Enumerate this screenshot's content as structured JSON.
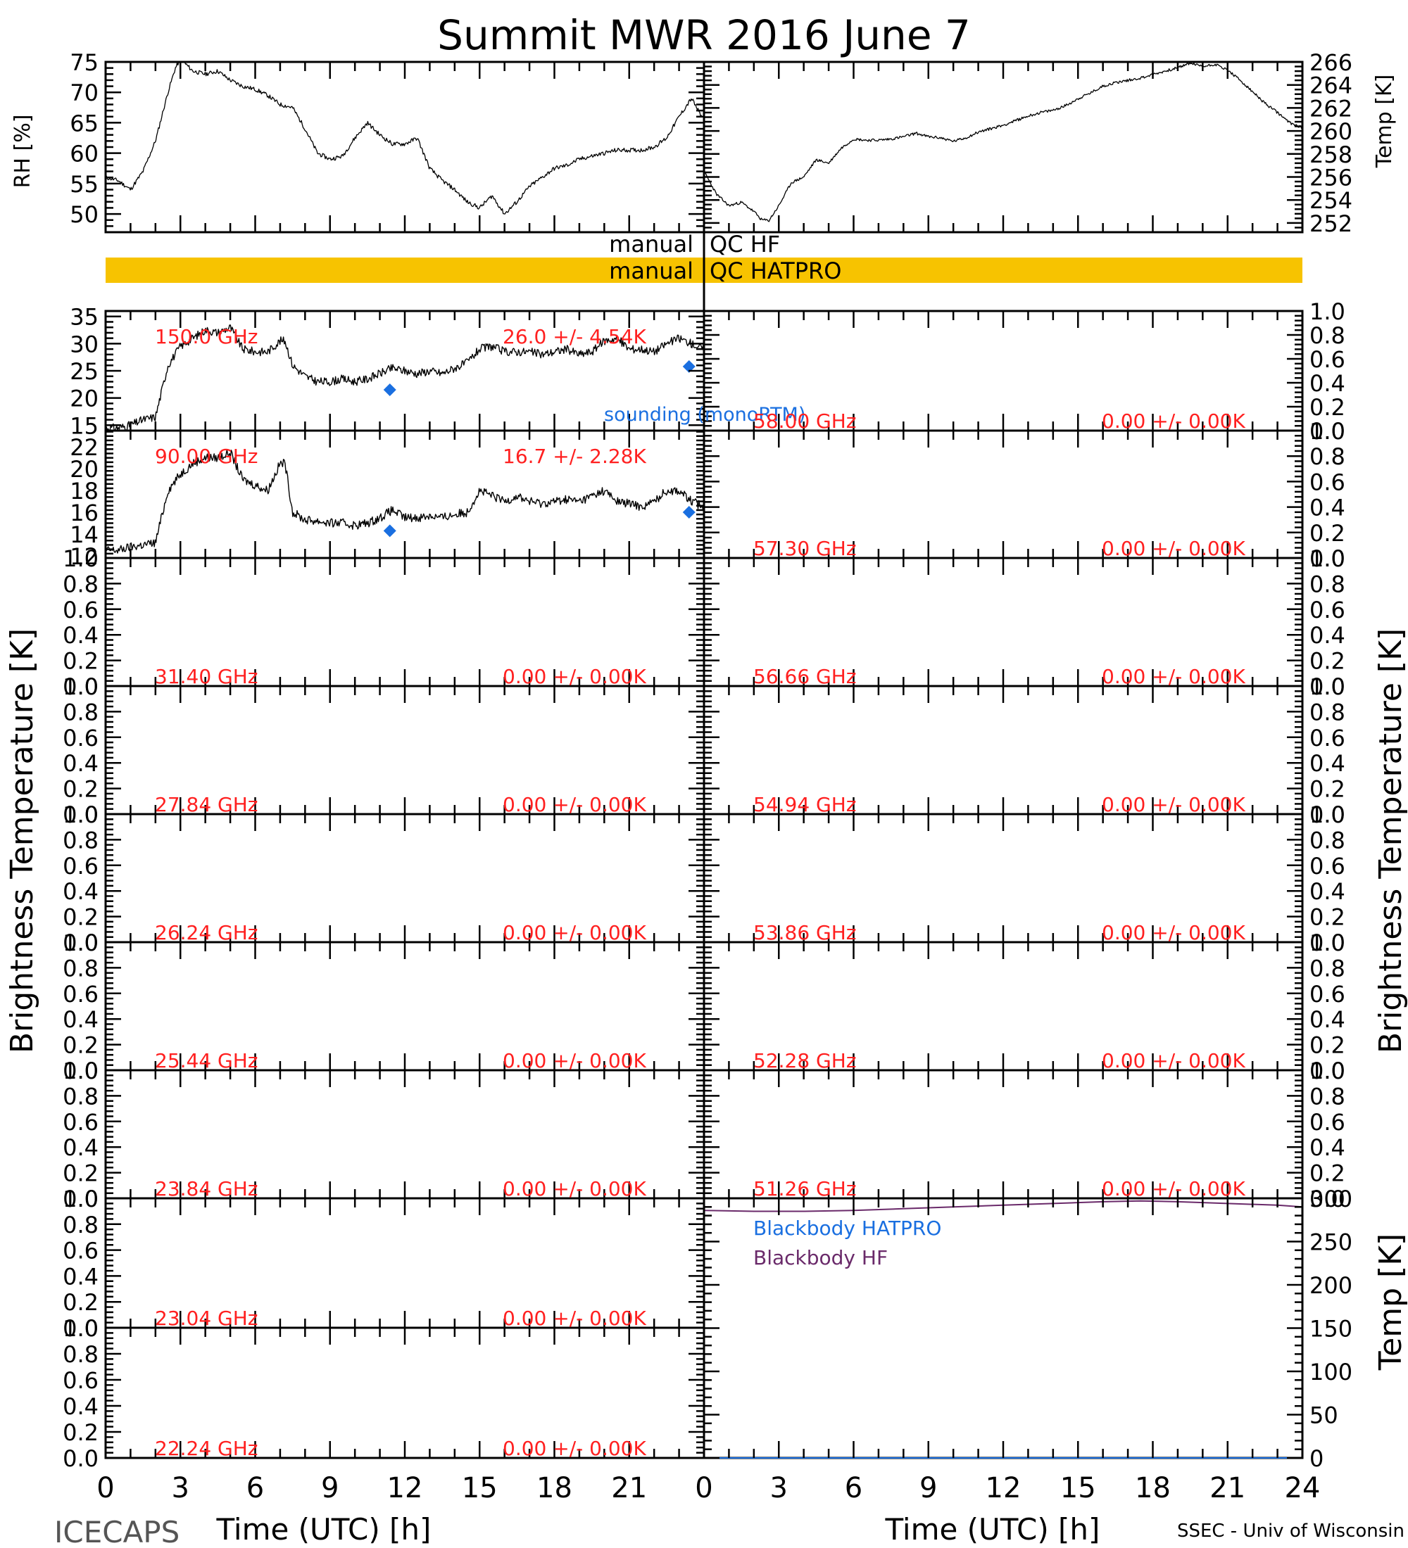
{
  "title": "Summit MWR 2016 June  7",
  "footer": {
    "left": "ICECAPS",
    "right": "SSEC - Univ of Wisconsin"
  },
  "axis_text": {
    "rh_label": "RH [%]",
    "temp_label": "Temp [K]",
    "tb_label": "Brightness Temperature [K]",
    "x_label": "Time (UTC) [h]"
  },
  "qc": {
    "hf_prefix": "manual",
    "hf_label": "QC HF",
    "hatpro_prefix": "manual",
    "hatpro_label": "QC HATPRO",
    "hatpro_color": "#f7c300"
  },
  "colors": {
    "data": "#000000",
    "label": "#ff2020",
    "sounding": "#1a6fe0",
    "blackbody_hf": "#6a2a6a",
    "blackbody_hatpro": "#1a6fe0"
  },
  "chart_data": [
    {
      "id": "met",
      "type": "line",
      "x_label": "Time (UTC) [h]",
      "xlim": [
        0,
        24
      ],
      "x_ticks": [
        0,
        3,
        6,
        9,
        12,
        15,
        18,
        21,
        24
      ],
      "left": {
        "ylabel": "RH [%]",
        "ylim": [
          47,
          75
        ],
        "ticks": [
          50,
          55,
          60,
          65,
          70,
          75
        ],
        "x": [
          0,
          0.5,
          1.0,
          1.5,
          2.0,
          2.5,
          2.8,
          3.0,
          3.5,
          4.0,
          4.5,
          5.0,
          5.5,
          6.0,
          6.5,
          7.0,
          7.5,
          8.0,
          8.5,
          9.0,
          9.5,
          10.0,
          10.5,
          11.0,
          11.5,
          12.0,
          12.5,
          13.0,
          13.5,
          14.0,
          14.5,
          15.0,
          15.5,
          16.0,
          16.5,
          17.0,
          17.5,
          18.0,
          18.5,
          19.0,
          19.5,
          20.0,
          20.5,
          21.0,
          21.5,
          22.0,
          22.5,
          23.0,
          23.5,
          23.9
        ],
        "values": [
          56,
          55.5,
          54,
          57,
          62,
          70,
          74,
          75.5,
          73.5,
          73,
          73.5,
          72,
          71,
          70.5,
          69.5,
          68,
          67.5,
          64,
          60,
          59,
          59.5,
          62.5,
          65,
          63,
          61.5,
          61.5,
          62.5,
          57.5,
          55.5,
          54,
          52,
          51,
          53,
          50,
          52,
          54.5,
          56,
          57.5,
          58,
          59,
          59.5,
          60,
          60.5,
          60.5,
          60.5,
          61,
          62.5,
          66,
          69,
          66
        ]
      },
      "right": {
        "ylabel": "Temp [K]",
        "ylim": [
          251.2,
          266
        ],
        "ticks": [
          252,
          254,
          256,
          258,
          260,
          262,
          264,
          266
        ],
        "x": [
          0,
          0.5,
          1.0,
          1.5,
          2.0,
          2.3,
          2.6,
          3.0,
          3.5,
          4.0,
          4.5,
          5.0,
          5.5,
          6.0,
          6.5,
          7.0,
          7.5,
          8.0,
          8.5,
          9.0,
          9.5,
          10.0,
          10.5,
          11.0,
          11.5,
          12.0,
          12.5,
          13.0,
          13.5,
          14.0,
          14.5,
          15.0,
          15.5,
          16.0,
          16.5,
          17.0,
          17.5,
          18.0,
          18.5,
          19.0,
          19.5,
          20.0,
          20.5,
          21.0,
          21.5,
          22.0,
          22.5,
          23.0,
          23.5,
          24.0
        ],
        "values": [
          256.5,
          254.5,
          253.5,
          253.8,
          253,
          252.3,
          252.2,
          253.5,
          255.5,
          256,
          257.5,
          257.2,
          258.5,
          259.3,
          259.2,
          259.2,
          259.3,
          259.5,
          259.8,
          259.5,
          259.4,
          259.1,
          259.4,
          259.9,
          260.2,
          260.5,
          260.9,
          261.3,
          261.6,
          261.8,
          262.2,
          262.8,
          263.3,
          263.9,
          264.2,
          264.4,
          264.6,
          264.9,
          265.2,
          265.5,
          265.9,
          265.6,
          265.8,
          265.3,
          264.4,
          263.4,
          262.4,
          261.6,
          260.7,
          260.3
        ]
      }
    },
    {
      "id": "c150",
      "side": "left",
      "type": "line",
      "channel": "150.0 GHz",
      "stat": "26.0 +/-  4.54K",
      "ylim": [
        14,
        36
      ],
      "ticks": [
        15,
        20,
        25,
        30,
        35
      ],
      "x": [
        0,
        0.5,
        1.0,
        1.5,
        2.0,
        2.5,
        3.0,
        3.5,
        4.0,
        4.5,
        5.0,
        5.5,
        6.0,
        6.5,
        7.0,
        7.2,
        7.5,
        8.0,
        8.5,
        9.0,
        9.5,
        10.0,
        10.5,
        11.0,
        11.5,
        12.0,
        12.5,
        13.0,
        13.5,
        14.0,
        14.5,
        15.0,
        15.5,
        16.0,
        16.5,
        17.0,
        17.5,
        18.0,
        18.5,
        19.0,
        19.5,
        20.0,
        20.5,
        21.0,
        21.5,
        22.0,
        22.5,
        23.0,
        23.5,
        24.0
      ],
      "values": [
        14.5,
        14.5,
        15,
        16,
        16.5,
        26,
        29.5,
        31,
        32.5,
        32,
        33,
        29,
        28.5,
        28.5,
        30.5,
        30.5,
        26,
        24,
        23,
        23,
        23.5,
        23,
        23.5,
        24.5,
        25.5,
        25,
        24.5,
        25,
        24.5,
        25.5,
        26.5,
        29,
        29.5,
        28.5,
        28.5,
        28.5,
        28,
        28.5,
        29,
        28,
        28.5,
        30.5,
        31,
        29,
        29,
        28.5,
        30,
        31,
        30,
        29
      ],
      "sounding": {
        "label": "sounding (monoRTM)",
        "x": [
          11.4,
          23.4
        ],
        "values": [
          21.5,
          25.8
        ]
      }
    },
    {
      "id": "c90",
      "side": "left",
      "type": "line",
      "channel": "90.00 GHz",
      "stat": "16.7 +/-  2.28K",
      "ylim": [
        11.8,
        23.5
      ],
      "ticks": [
        12,
        14,
        16,
        18,
        20,
        22
      ],
      "x": [
        0,
        0.5,
        1.0,
        1.5,
        2.0,
        2.5,
        3.0,
        3.5,
        4.0,
        4.5,
        5.0,
        5.5,
        6.0,
        6.5,
        7.0,
        7.2,
        7.5,
        8.0,
        8.5,
        9.0,
        9.5,
        10.0,
        10.5,
        11.0,
        11.5,
        12.0,
        12.5,
        13.0,
        13.5,
        14.0,
        14.5,
        15.0,
        15.5,
        16.0,
        16.5,
        17.0,
        17.5,
        18.0,
        18.5,
        19.0,
        19.5,
        20.0,
        20.5,
        21.0,
        21.5,
        22.0,
        22.5,
        23.0,
        23.5,
        24.0
      ],
      "values": [
        12.5,
        12.5,
        12.8,
        13,
        13.2,
        18,
        19.5,
        20.5,
        21,
        21,
        21.5,
        19,
        18.5,
        18,
        20.5,
        20.5,
        16,
        15.3,
        15.2,
        15,
        15,
        14.8,
        15,
        15.5,
        16.2,
        15.5,
        15.5,
        15.7,
        15.5,
        15.8,
        16,
        18,
        17.5,
        17,
        17.5,
        17,
        16.8,
        17,
        17.2,
        17,
        17.5,
        18,
        17,
        16.8,
        16.5,
        17,
        18,
        18,
        17,
        16.5
      ],
      "sounding": {
        "x": [
          11.4,
          23.4
        ],
        "values": [
          14.3,
          16
        ]
      }
    },
    {
      "id": "c31",
      "side": "left",
      "type": "line",
      "channel": "31.40 GHz",
      "stat": "0.00 +/-  0.00K",
      "ylim": [
        0,
        1
      ],
      "ticks": [
        0.0,
        0.2,
        0.4,
        0.6,
        0.8,
        1.0
      ]
    },
    {
      "id": "c27",
      "side": "left",
      "type": "line",
      "channel": "27.84 GHz",
      "stat": "0.00 +/-  0.00K",
      "ylim": [
        0,
        1
      ],
      "ticks": [
        0.0,
        0.2,
        0.4,
        0.6,
        0.8,
        1.0
      ]
    },
    {
      "id": "c26",
      "side": "left",
      "type": "line",
      "channel": "26.24 GHz",
      "stat": "0.00 +/-  0.00K",
      "ylim": [
        0,
        1
      ],
      "ticks": [
        0.0,
        0.2,
        0.4,
        0.6,
        0.8,
        1.0
      ]
    },
    {
      "id": "c25",
      "side": "left",
      "type": "line",
      "channel": "25.44 GHz",
      "stat": "0.00 +/-  0.00K",
      "ylim": [
        0,
        1
      ],
      "ticks": [
        0.0,
        0.2,
        0.4,
        0.6,
        0.8,
        1.0
      ]
    },
    {
      "id": "c23a",
      "side": "left",
      "type": "line",
      "channel": "23.84 GHz",
      "stat": "0.00 +/-  0.00K",
      "ylim": [
        0,
        1
      ],
      "ticks": [
        0.0,
        0.2,
        0.4,
        0.6,
        0.8,
        1.0
      ]
    },
    {
      "id": "c23b",
      "side": "left",
      "type": "line",
      "channel": "23.04 GHz",
      "stat": "0.00 +/-  0.00K",
      "ylim": [
        0,
        1
      ],
      "ticks": [
        0.0,
        0.2,
        0.4,
        0.6,
        0.8,
        1.0
      ]
    },
    {
      "id": "c22",
      "side": "left",
      "type": "line",
      "channel": "22.24 GHz",
      "stat": "0.00 +/-  0.00K",
      "ylim": [
        0,
        1
      ],
      "ticks": [
        0.0,
        0.2,
        0.4,
        0.6,
        0.8,
        1.0
      ]
    },
    {
      "id": "c58",
      "side": "right",
      "type": "line",
      "channel": "58.00 GHz",
      "stat": "0.00 +/-  0.00K",
      "ylim": [
        0,
        1
      ],
      "ticks": [
        0.0,
        0.2,
        0.4,
        0.6,
        0.8,
        1.0
      ]
    },
    {
      "id": "c57",
      "side": "right",
      "type": "line",
      "channel": "57.30 GHz",
      "stat": "0.00 +/-  0.00K",
      "ylim": [
        0,
        1
      ],
      "ticks": [
        0.0,
        0.2,
        0.4,
        0.6,
        0.8,
        1.0
      ]
    },
    {
      "id": "c56",
      "side": "right",
      "type": "line",
      "channel": "56.66 GHz",
      "stat": "0.00 +/-  0.00K",
      "ylim": [
        0,
        1
      ],
      "ticks": [
        0.0,
        0.2,
        0.4,
        0.6,
        0.8,
        1.0
      ]
    },
    {
      "id": "c54",
      "side": "right",
      "type": "line",
      "channel": "54.94 GHz",
      "stat": "0.00 +/-  0.00K",
      "ylim": [
        0,
        1
      ],
      "ticks": [
        0.0,
        0.2,
        0.4,
        0.6,
        0.8,
        1.0
      ]
    },
    {
      "id": "c53",
      "side": "right",
      "type": "line",
      "channel": "53.86 GHz",
      "stat": "0.00 +/-  0.00K",
      "ylim": [
        0,
        1
      ],
      "ticks": [
        0.0,
        0.2,
        0.4,
        0.6,
        0.8,
        1.0
      ]
    },
    {
      "id": "c52",
      "side": "right",
      "type": "line",
      "channel": "52.28 GHz",
      "stat": "0.00 +/-  0.00K",
      "ylim": [
        0,
        1
      ],
      "ticks": [
        0.0,
        0.2,
        0.4,
        0.6,
        0.8,
        1.0
      ]
    },
    {
      "id": "c51",
      "side": "right",
      "type": "line",
      "channel": "51.26 GHz",
      "stat": "0.00 +/-  0.00K",
      "ylim": [
        0,
        1
      ],
      "ticks": [
        0.0,
        0.2,
        0.4,
        0.6,
        0.8,
        1.0
      ]
    },
    {
      "id": "bb",
      "side": "right",
      "type": "line",
      "ylabel": "Temp [K]",
      "ylim": [
        0,
        300
      ],
      "ticks": [
        0,
        50,
        100,
        150,
        200,
        250,
        300
      ],
      "series": [
        {
          "name": "Blackbody HATPRO",
          "x": [
            0,
            24
          ],
          "values": [
            0,
            0
          ]
        },
        {
          "name": "Blackbody HF",
          "x": [
            0,
            2,
            4,
            6,
            8,
            10,
            12,
            14,
            16,
            17.5,
            19,
            21,
            23,
            24
          ],
          "values": [
            286,
            285,
            285,
            286,
            288,
            290,
            292,
            294,
            296,
            297,
            296,
            294,
            292,
            290
          ]
        }
      ]
    }
  ]
}
